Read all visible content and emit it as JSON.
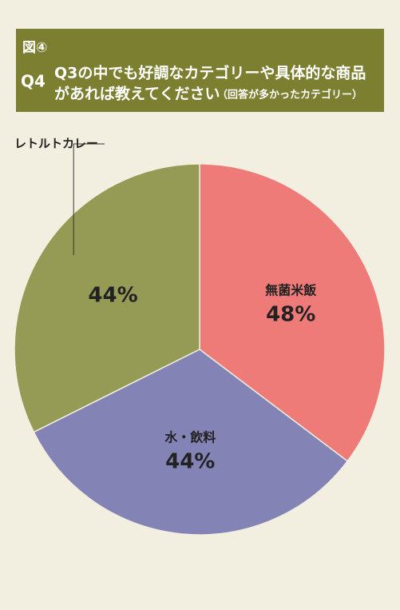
{
  "chart_data": {
    "type": "pie",
    "figure_label": "図④",
    "question_number": "Q4",
    "title_lines": [
      "Q3の中でも好調なカテゴリーや具体的な商品",
      "があれば教えてください"
    ],
    "subtitle": "（回答が多かったカテゴリー）",
    "categories": [
      "無菌米飯",
      "水・飲料",
      "レトルトカレー"
    ],
    "values": [
      48,
      44,
      44
    ],
    "value_labels": [
      "48%",
      "44%",
      "44%"
    ],
    "colors": [
      "#ee7b78",
      "#8383b6",
      "#959a55"
    ]
  }
}
